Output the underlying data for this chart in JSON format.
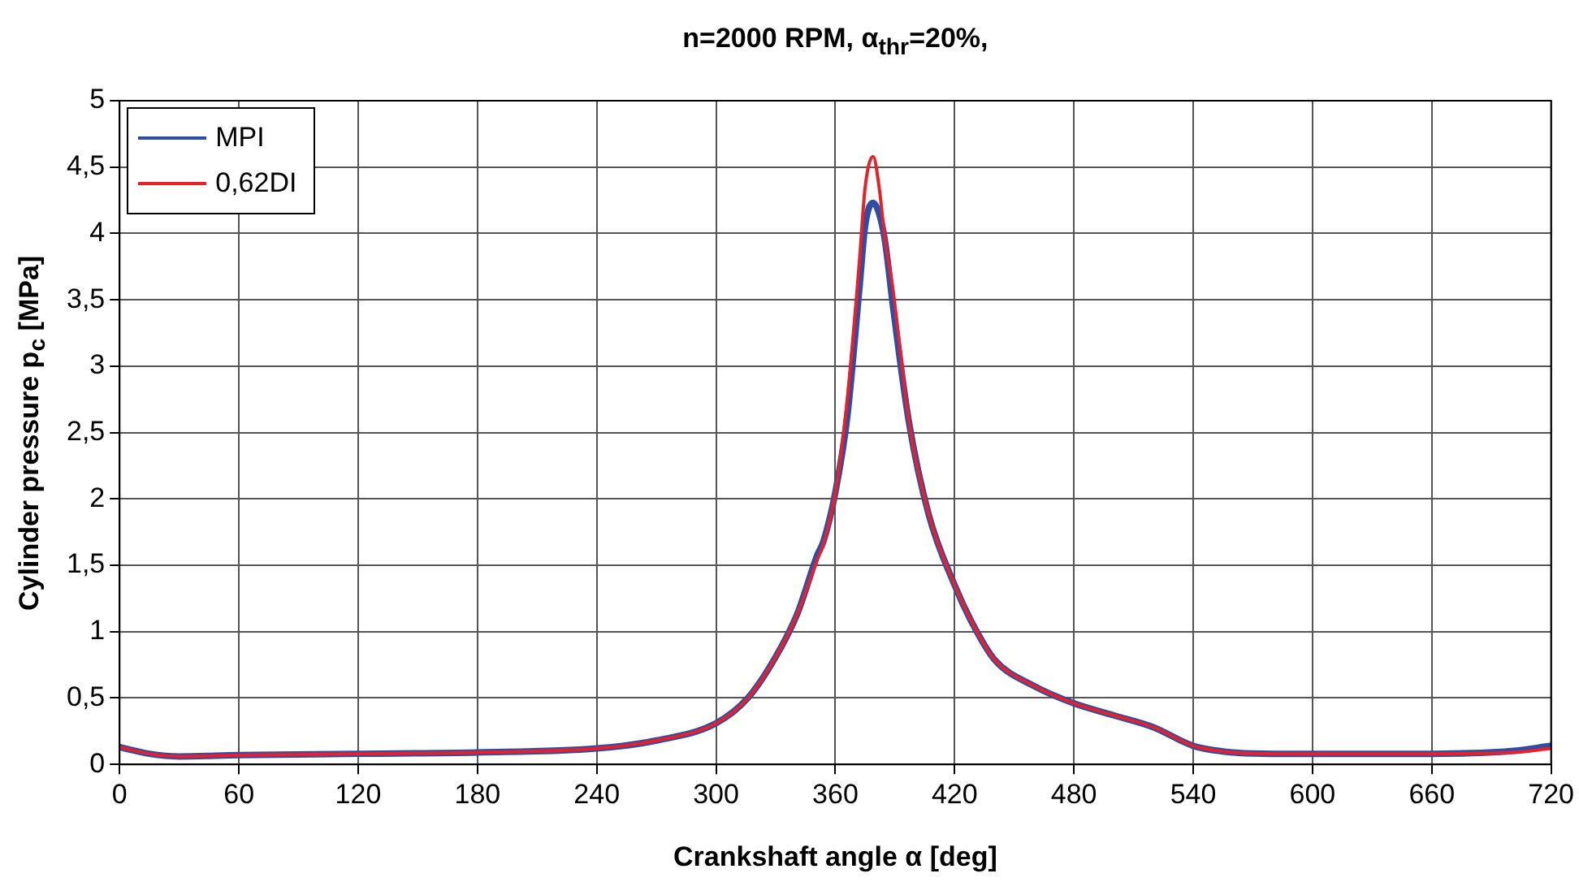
{
  "chart_data": {
    "type": "line",
    "title": "n=2000 RPM, α$_{thr}$=20%,",
    "xlabel": "Crankshaft angle α [deg]",
    "ylabel": "Cylinder pressure p$_{c}$ [MPa]",
    "x": [
      0,
      15,
      30,
      60,
      120,
      180,
      240,
      270,
      300,
      316,
      330,
      341,
      351,
      354,
      360,
      366,
      372,
      375,
      379,
      382,
      385,
      389,
      397,
      407,
      420,
      429,
      440,
      460,
      480,
      500,
      520,
      540,
      560,
      580,
      600,
      660,
      700,
      720
    ],
    "series": [
      {
        "name": "MPI",
        "color": "#2e4ea6",
        "values": [
          0.13,
          0.08,
          0.06,
          0.07,
          0.08,
          0.09,
          0.12,
          0.18,
          0.31,
          0.5,
          0.81,
          1.14,
          1.58,
          1.68,
          2.05,
          2.62,
          3.57,
          4.06,
          4.23,
          4.15,
          3.94,
          3.45,
          2.58,
          1.88,
          1.35,
          1.06,
          0.79,
          0.59,
          0.46,
          0.37,
          0.28,
          0.14,
          0.09,
          0.08,
          0.08,
          0.08,
          0.1,
          0.14
        ]
      },
      {
        "name": "0,62DI",
        "color": "#e8202a",
        "values": [
          0.13,
          0.08,
          0.06,
          0.07,
          0.08,
          0.09,
          0.12,
          0.18,
          0.31,
          0.5,
          0.81,
          1.14,
          1.55,
          1.66,
          2.05,
          2.75,
          3.77,
          4.35,
          4.58,
          4.35,
          3.95,
          3.57,
          2.58,
          1.88,
          1.35,
          1.06,
          0.79,
          0.59,
          0.46,
          0.37,
          0.28,
          0.14,
          0.09,
          0.08,
          0.08,
          0.08,
          0.09,
          0.12
        ]
      }
    ],
    "xlim": [
      0,
      720
    ],
    "xticks": [
      0,
      60,
      120,
      180,
      240,
      300,
      360,
      420,
      480,
      540,
      600,
      660,
      720
    ],
    "ylim": [
      0,
      5
    ],
    "yticks": [
      0,
      {
        "value": 0.5,
        "label": "0,5"
      },
      1,
      {
        "value": 1.5,
        "label": "1,5"
      },
      2,
      {
        "value": 2.5,
        "label": "2,5"
      },
      3,
      {
        "value": 3.5,
        "label": "3,5"
      },
      4,
      {
        "value": 4.5,
        "label": "4,5"
      },
      5
    ],
    "grid": true,
    "legend": "top left",
    "marker": "none",
    "line_style": "solid"
  }
}
